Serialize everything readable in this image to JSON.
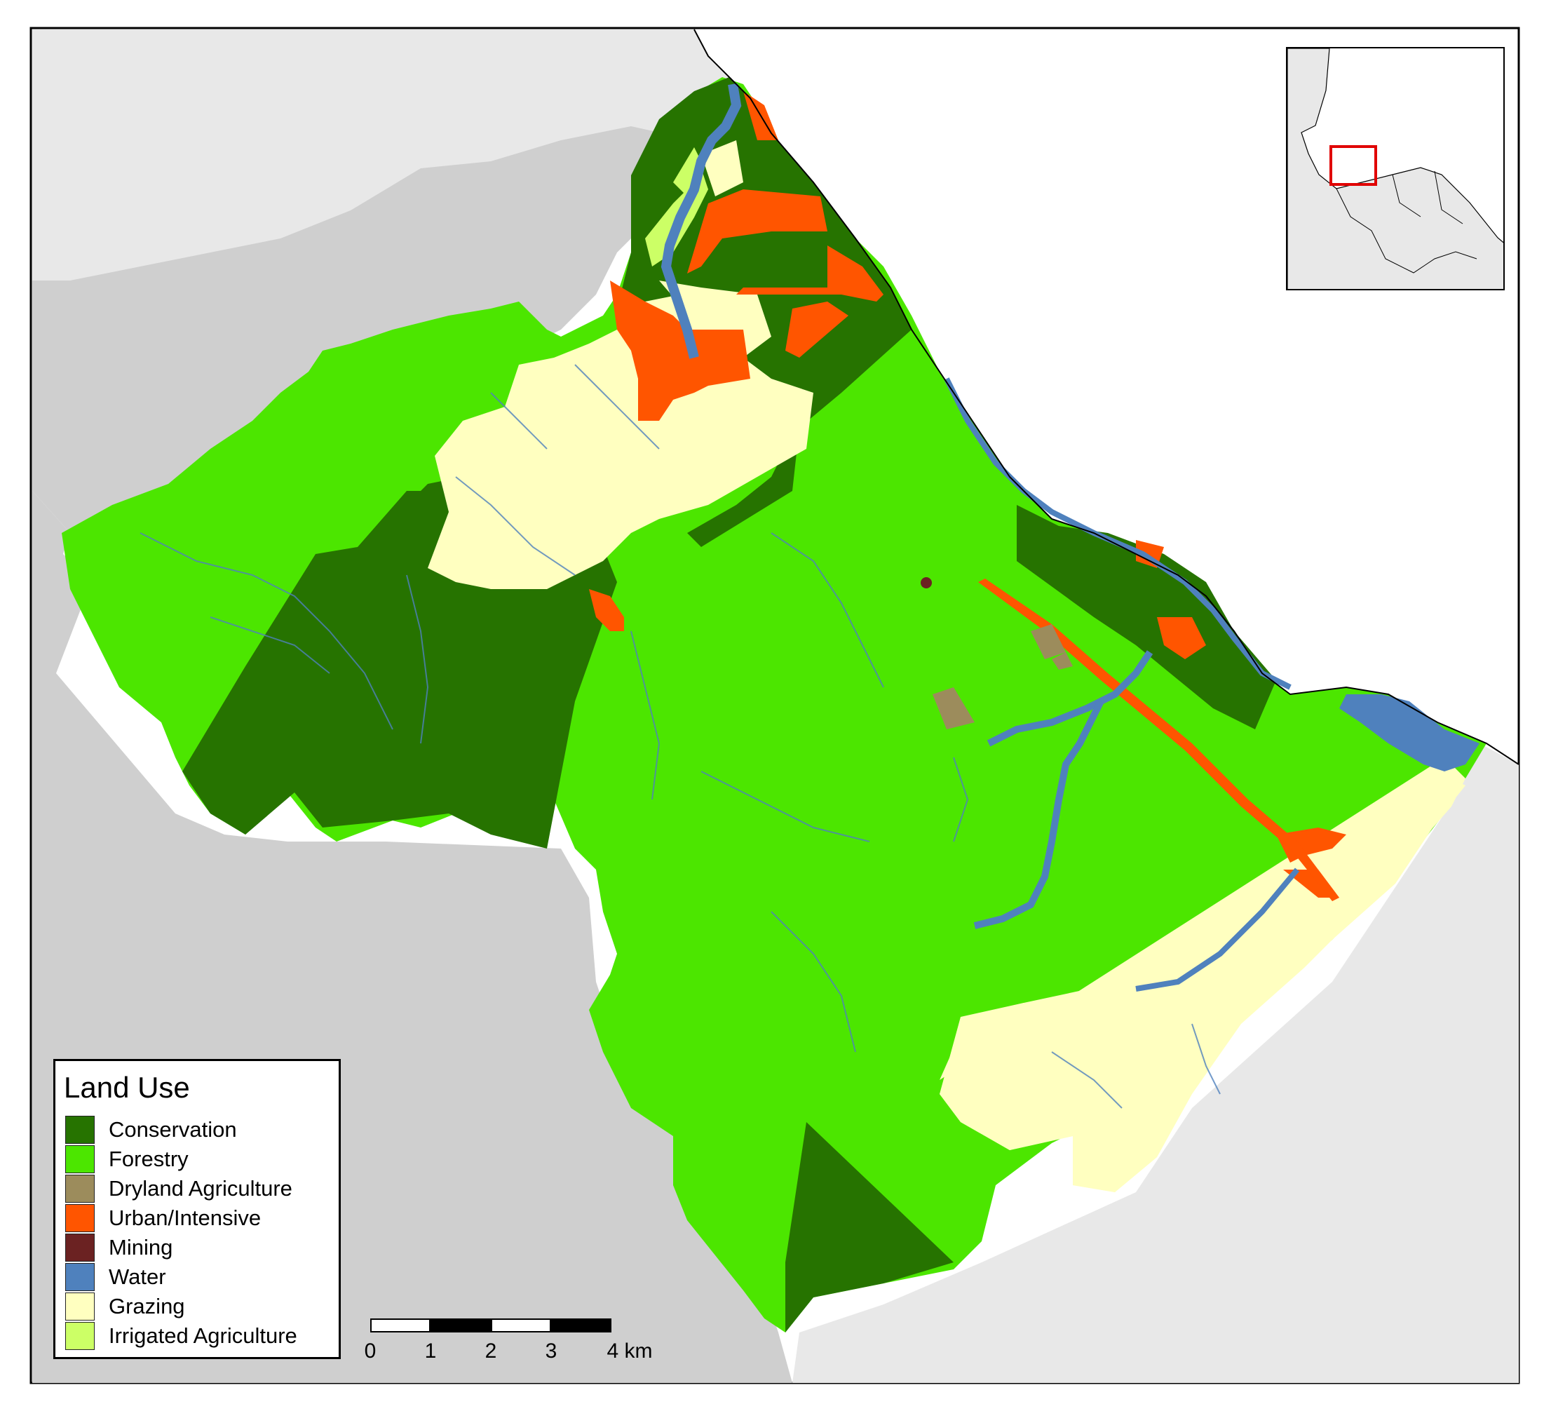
{
  "legend": {
    "title": "Land Use",
    "items": [
      {
        "label": "Conservation",
        "color": "#267300"
      },
      {
        "label": "Forestry",
        "color": "#4ce600"
      },
      {
        "label": "Dryland Agriculture",
        "color": "#9c8c5c"
      },
      {
        "label": "Urban/Intensive",
        "color": "#ff5500"
      },
      {
        "label": "Mining",
        "color": "#6b2222"
      },
      {
        "label": "Water",
        "color": "#4f81bd"
      },
      {
        "label": "Grazing",
        "color": "#ffffc0"
      },
      {
        "label": "Irrigated Agriculture",
        "color": "#ccff66"
      }
    ]
  },
  "scalebar": {
    "ticks": [
      "0",
      "1",
      "2",
      "3",
      "4 km"
    ]
  },
  "colors": {
    "background_land": "#cfcfcf",
    "background_light": "#e8e8e8",
    "ocean": "#ffffff",
    "stream": "#4f81bd",
    "inset_highlight": "#e00000"
  }
}
